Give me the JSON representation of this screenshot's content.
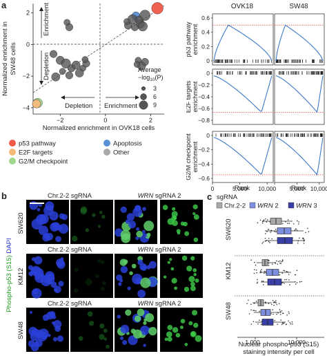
{
  "panels": {
    "a": "a",
    "b": "b",
    "c": "c"
  },
  "scatter": {
    "xlabel": "Normalized enrichment in OVK18 cells",
    "ylabel": "Normalized enrichment in SW48 cells",
    "xticks": [
      "−2",
      "0",
      "2"
    ],
    "yticks": [
      "2",
      "0",
      "−2",
      "−4"
    ],
    "arrow_enrichment_up": "Enrichment",
    "arrow_depletion_down": "Depletion",
    "arrow_depletion_left": "Depletion",
    "arrow_enrichment_right": "Enrichment",
    "size_legend_title_1": "Average",
    "size_legend_title_2": "−log",
    "size_legend_title_sub": "10",
    "size_legend_title_3": "(P)",
    "size_legend_values": [
      "3",
      "6",
      "9"
    ],
    "legend": [
      {
        "label": "p53 pathway",
        "color": "#f05a4a"
      },
      {
        "label": "E2F targets",
        "color": "#f5b97a"
      },
      {
        "label": "G2/M checkpoint",
        "color": "#9fd88c"
      },
      {
        "label": "Apoptosis",
        "color": "#5b8fd6"
      },
      {
        "label": "Other",
        "color": "#a8a8a8"
      }
    ]
  },
  "gsea": {
    "col_titles": [
      "OVK18",
      "SW48"
    ],
    "row_labels": [
      [
        "p53 pathway",
        "enrichment"
      ],
      [
        "E2F targets",
        "enrichment"
      ],
      [
        "G2/M checkpoint",
        "enrichment"
      ]
    ],
    "row_ticks": [
      [
        "0.6",
        "0.4",
        "0.2",
        "0"
      ],
      [
        "0",
        "−0.2",
        "−0.4",
        "−0.6",
        "−0.8"
      ],
      [
        "0",
        "−0.2",
        "−0.4",
        "−0.6"
      ]
    ],
    "xticks": [
      "0",
      "5,000",
      "10,000"
    ],
    "xlabel": "Rank"
  },
  "micro": {
    "col_headers": [
      {
        "text_pre": "Chr.2-2 sgRNA",
        "italic": "",
        "text_post": ""
      },
      {
        "text_pre": "",
        "italic": "WRN",
        "text_post": " sgRNA 2"
      }
    ],
    "rows": [
      "SW620",
      "KM12",
      "SW48"
    ],
    "ylabel_green": "Phospho-p53 (S15)",
    "ylabel_blue": "DAPI"
  },
  "boxplot": {
    "legend_title": "sgRNA",
    "legend": [
      {
        "label": "Chr.2-2",
        "italic": false,
        "color": "#a9a9a9"
      },
      {
        "label": "WRN",
        "suffix": " 2",
        "italic": true,
        "color": "#7f8fe0"
      },
      {
        "label": "WRN",
        "suffix": " 3",
        "italic": true,
        "color": "#3a3fa8"
      }
    ],
    "rows": [
      "SW620",
      "KM12",
      "SW48"
    ],
    "xticks": [
      "1,000",
      "10,000"
    ],
    "xlabel_1": "Nuclear phospho-p53 (S15)",
    "xlabel_2": "staining intensity per cell"
  },
  "chart_data": [
    {
      "type": "scatter",
      "title": "",
      "xlabel": "Normalized enrichment in OVK18 cells",
      "ylabel": "Normalized enrichment in SW48 cells",
      "xlim": [
        -3.2,
        2.6
      ],
      "ylim": [
        -4.4,
        2.6
      ],
      "points": [
        {
          "x": 2.3,
          "y": 2.3,
          "size": 9,
          "group": "p53 pathway"
        },
        {
          "x": 1.35,
          "y": 1.8,
          "size": 6,
          "group": "Apoptosis"
        },
        {
          "x": 1.2,
          "y": 1.6,
          "size": 7,
          "group": "Other"
        },
        {
          "x": 1.5,
          "y": 1.55,
          "size": 6,
          "group": "Other"
        },
        {
          "x": 1.75,
          "y": 1.85,
          "size": 8,
          "group": "Other"
        },
        {
          "x": 1.0,
          "y": 1.2,
          "size": 5,
          "group": "Other"
        },
        {
          "x": 1.3,
          "y": 1.1,
          "size": 5,
          "group": "Other"
        },
        {
          "x": 1.55,
          "y": 1.3,
          "size": 6,
          "group": "Other"
        },
        {
          "x": 0.95,
          "y": 1.45,
          "size": 4,
          "group": "Other"
        },
        {
          "x": 1.65,
          "y": 1.15,
          "size": 7,
          "group": "Other"
        },
        {
          "x": -1.7,
          "y": 1.4,
          "size": 4,
          "group": "Other"
        },
        {
          "x": -1.6,
          "y": 1.1,
          "size": 5,
          "group": "Other"
        },
        {
          "x": 1.45,
          "y": -1.0,
          "size": 4,
          "group": "Other"
        },
        {
          "x": 1.6,
          "y": -1.35,
          "size": 6,
          "group": "Other"
        },
        {
          "x": 1.75,
          "y": -1.1,
          "size": 5,
          "group": "Other"
        },
        {
          "x": 1.4,
          "y": -1.25,
          "size": 4,
          "group": "Other"
        },
        {
          "x": -2.3,
          "y": -0.6,
          "size": 5,
          "group": "Other"
        },
        {
          "x": -2.0,
          "y": -1.0,
          "size": 6,
          "group": "Other"
        },
        {
          "x": -1.75,
          "y": -1.2,
          "size": 7,
          "group": "Other"
        },
        {
          "x": -1.5,
          "y": -1.5,
          "size": 5,
          "group": "Other"
        },
        {
          "x": -1.3,
          "y": -1.3,
          "size": 6,
          "group": "Other"
        },
        {
          "x": -1.0,
          "y": -1.5,
          "size": 4,
          "group": "Other"
        },
        {
          "x": -1.15,
          "y": -1.8,
          "size": 6,
          "group": "Other"
        },
        {
          "x": -0.85,
          "y": -1.2,
          "size": 5,
          "group": "Other"
        },
        {
          "x": -1.6,
          "y": -1.95,
          "size": 5,
          "group": "Other"
        },
        {
          "x": -2.2,
          "y": -2.05,
          "size": 6,
          "group": "Other"
        },
        {
          "x": -1.9,
          "y": -1.7,
          "size": 4,
          "group": "Other"
        },
        {
          "x": -0.9,
          "y": -0.95,
          "size": 4,
          "group": "Other"
        },
        {
          "x": -3.0,
          "y": -3.7,
          "size": 7,
          "group": "G2/M checkpoint"
        },
        {
          "x": -3.05,
          "y": -3.75,
          "size": 6,
          "group": "E2F targets"
        }
      ],
      "size_legend": [
        3,
        6,
        9
      ]
    }
  ]
}
